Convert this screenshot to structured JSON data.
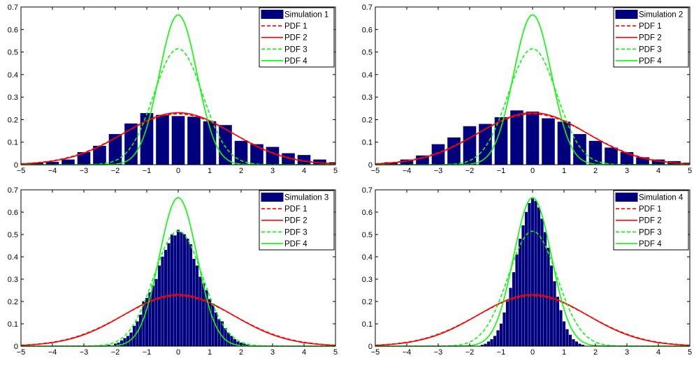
{
  "chart_data": [
    {
      "type": "bar",
      "xlim": [
        -5,
        5
      ],
      "ylim": [
        0,
        0.7
      ],
      "xticks": [
        -5,
        -4,
        -3,
        -2,
        -1,
        0,
        1,
        2,
        3,
        4,
        5
      ],
      "yticks": [
        0,
        0.1,
        0.2,
        0.3,
        0.4,
        0.5,
        0.6,
        0.7
      ],
      "grid": false,
      "legend_position": "top-right",
      "histogram": {
        "name": "Simulation 1",
        "bin_centers": [
          -4.5,
          -4.0,
          -3.5,
          -3.0,
          -2.5,
          -2.0,
          -1.5,
          -1.0,
          -0.5,
          0.0,
          0.5,
          1.0,
          1.5,
          2.0,
          2.5,
          3.0,
          3.5,
          4.0,
          4.5,
          5.0
        ],
        "values": [
          0.007,
          0.012,
          0.022,
          0.055,
          0.083,
          0.135,
          0.182,
          0.228,
          0.22,
          0.215,
          0.212,
          0.192,
          0.175,
          0.105,
          0.09,
          0.078,
          0.05,
          0.042,
          0.022,
          0.01
        ]
      },
      "series": [
        {
          "name": "PDF 1",
          "sigma": 1.77,
          "style": "dashed",
          "color": "#ff0000"
        },
        {
          "name": "PDF 2",
          "sigma": 1.73,
          "style": "solid",
          "color": "#ff0000"
        },
        {
          "name": "PDF 3",
          "sigma": 0.775,
          "style": "dashed",
          "color": "#00ff00"
        },
        {
          "name": "PDF 4",
          "sigma": 0.6,
          "style": "solid",
          "color": "#00ff00"
        }
      ]
    },
    {
      "type": "bar",
      "xlim": [
        -5,
        5
      ],
      "ylim": [
        0,
        0.7
      ],
      "xticks": [
        -5,
        -4,
        -3,
        -2,
        -1,
        0,
        1,
        2,
        3,
        4,
        5
      ],
      "yticks": [
        0,
        0.1,
        0.2,
        0.3,
        0.4,
        0.5,
        0.6,
        0.7
      ],
      "grid": false,
      "legend_position": "top-right",
      "histogram": {
        "name": "Simulation 2",
        "bin_centers": [
          -5.0,
          -4.5,
          -4.0,
          -3.5,
          -3.0,
          -2.5,
          -2.0,
          -1.5,
          -1.0,
          -0.5,
          0.0,
          0.5,
          1.0,
          1.5,
          2.0,
          2.5,
          3.0,
          3.5,
          4.0,
          4.5,
          5.0
        ],
        "values": [
          0.005,
          0.01,
          0.022,
          0.04,
          0.09,
          0.12,
          0.17,
          0.18,
          0.21,
          0.24,
          0.235,
          0.205,
          0.19,
          0.135,
          0.105,
          0.075,
          0.055,
          0.032,
          0.022,
          0.015,
          0.008
        ]
      },
      "series": [
        {
          "name": "PDF 1",
          "sigma": 1.77,
          "style": "dashed",
          "color": "#ff0000"
        },
        {
          "name": "PDF 2",
          "sigma": 1.73,
          "style": "solid",
          "color": "#ff0000"
        },
        {
          "name": "PDF 3",
          "sigma": 0.775,
          "style": "dashed",
          "color": "#00ff00"
        },
        {
          "name": "PDF 4",
          "sigma": 0.6,
          "style": "solid",
          "color": "#00ff00"
        }
      ]
    },
    {
      "type": "bar",
      "xlim": [
        -5,
        5
      ],
      "ylim": [
        0,
        0.7
      ],
      "xticks": [
        -5,
        -4,
        -3,
        -2,
        -1,
        0,
        1,
        2,
        3,
        4,
        5
      ],
      "yticks": [
        0,
        0.1,
        0.2,
        0.3,
        0.4,
        0.5,
        0.6,
        0.7
      ],
      "grid": false,
      "legend_position": "top-right",
      "histogram": {
        "name": "Simulation 3",
        "bin_centers": [
          -2.2,
          -2.0,
          -1.9,
          -1.8,
          -1.7,
          -1.6,
          -1.5,
          -1.4,
          -1.3,
          -1.2,
          -1.1,
          -1.0,
          -0.9,
          -0.8,
          -0.7,
          -0.6,
          -0.5,
          -0.4,
          -0.3,
          -0.2,
          -0.1,
          0.0,
          0.1,
          0.2,
          0.3,
          0.4,
          0.5,
          0.6,
          0.7,
          0.8,
          0.9,
          1.0,
          1.1,
          1.2,
          1.3,
          1.4,
          1.5,
          1.6,
          1.7,
          1.8,
          1.9,
          2.0,
          2.1,
          2.2
        ],
        "values": [
          0.005,
          0.01,
          0.015,
          0.025,
          0.035,
          0.045,
          0.06,
          0.09,
          0.11,
          0.14,
          0.2,
          0.215,
          0.24,
          0.27,
          0.3,
          0.36,
          0.4,
          0.43,
          0.46,
          0.5,
          0.495,
          0.52,
          0.51,
          0.5,
          0.48,
          0.455,
          0.39,
          0.36,
          0.31,
          0.28,
          0.25,
          0.21,
          0.19,
          0.15,
          0.12,
          0.11,
          0.08,
          0.06,
          0.045,
          0.03,
          0.02,
          0.015,
          0.01,
          0.006
        ]
      },
      "series": [
        {
          "name": "PDF 1",
          "sigma": 1.77,
          "style": "dashed",
          "color": "#ff0000"
        },
        {
          "name": "PDF 2",
          "sigma": 1.73,
          "style": "solid",
          "color": "#ff0000"
        },
        {
          "name": "PDF 3",
          "sigma": 0.775,
          "style": "dashed",
          "color": "#00ff00"
        },
        {
          "name": "PDF 4",
          "sigma": 0.6,
          "style": "solid",
          "color": "#00ff00"
        }
      ]
    },
    {
      "type": "bar",
      "xlim": [
        -5,
        5
      ],
      "ylim": [
        0,
        0.7
      ],
      "xticks": [
        -5,
        -4,
        -3,
        -2,
        -1,
        0,
        1,
        2,
        3,
        4,
        5
      ],
      "yticks": [
        0,
        0.1,
        0.2,
        0.3,
        0.4,
        0.5,
        0.6,
        0.7
      ],
      "grid": false,
      "legend_position": "top-right",
      "histogram": {
        "name": "Simulation 4",
        "bin_centers": [
          -1.6,
          -1.5,
          -1.4,
          -1.3,
          -1.2,
          -1.1,
          -1.0,
          -0.9,
          -0.8,
          -0.7,
          -0.6,
          -0.5,
          -0.4,
          -0.3,
          -0.2,
          -0.1,
          0.0,
          0.1,
          0.2,
          0.3,
          0.4,
          0.5,
          0.6,
          0.7,
          0.8,
          0.9,
          1.0,
          1.1,
          1.2,
          1.3,
          1.4,
          1.5,
          1.6
        ],
        "values": [
          0.005,
          0.01,
          0.02,
          0.03,
          0.045,
          0.07,
          0.1,
          0.15,
          0.2,
          0.26,
          0.33,
          0.41,
          0.48,
          0.54,
          0.6,
          0.64,
          0.66,
          0.65,
          0.62,
          0.57,
          0.51,
          0.44,
          0.36,
          0.29,
          0.22,
          0.16,
          0.11,
          0.075,
          0.05,
          0.03,
          0.02,
          0.01,
          0.005
        ]
      },
      "series": [
        {
          "name": "PDF 1",
          "sigma": 1.77,
          "style": "dashed",
          "color": "#ff0000"
        },
        {
          "name": "PDF 2",
          "sigma": 1.73,
          "style": "solid",
          "color": "#ff0000"
        },
        {
          "name": "PDF 3",
          "sigma": 0.775,
          "style": "dashed",
          "color": "#00ff00"
        },
        {
          "name": "PDF 4",
          "sigma": 0.6,
          "style": "solid",
          "color": "#00ff00"
        }
      ]
    }
  ],
  "colors": {
    "bar_fill": "#00007f",
    "bar_edge": "#00007f"
  }
}
